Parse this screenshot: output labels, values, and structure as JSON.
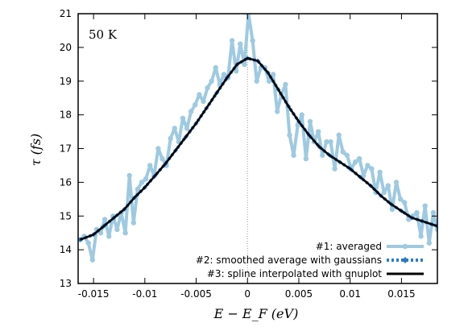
{
  "chart_data": {
    "type": "line",
    "annotation": "50 K",
    "xlabel": "E − E_F (eV)",
    "ylabel": "τ (fs)",
    "xlim": [
      -0.0165,
      0.0185
    ],
    "ylim": [
      13,
      21
    ],
    "xticks": [
      -0.015,
      -0.01,
      -0.005,
      0,
      0.005,
      0.01,
      0.015
    ],
    "xtick_labels": [
      "-0.015",
      "-0.01",
      "-0.005",
      "0",
      "0.005",
      "0.01",
      "0.015"
    ],
    "yticks": [
      13,
      14,
      15,
      16,
      17,
      18,
      19,
      20,
      21
    ],
    "ytick_labels": [
      "13",
      "14",
      "15",
      "16",
      "17",
      "18",
      "19",
      "20",
      "21"
    ],
    "reference_line_x": 0,
    "legend_position": "bottom-right",
    "colors": {
      "averaged": "#9ecae1",
      "smoothed": "#2b7bc4",
      "spline": "#000000",
      "reference": "#999999"
    },
    "series": [
      {
        "name": "#1: averaged",
        "x": [
          -0.0163,
          -0.0159,
          -0.0155,
          -0.0151,
          -0.0147,
          -0.0143,
          -0.0139,
          -0.0135,
          -0.0131,
          -0.0127,
          -0.0123,
          -0.0119,
          -0.0115,
          -0.0111,
          -0.0107,
          -0.0103,
          -0.0099,
          -0.0095,
          -0.0091,
          -0.0087,
          -0.0083,
          -0.0079,
          -0.0075,
          -0.0071,
          -0.0067,
          -0.0063,
          -0.0059,
          -0.0055,
          -0.0051,
          -0.0047,
          -0.0043,
          -0.0039,
          -0.0035,
          -0.0031,
          -0.0027,
          -0.0023,
          -0.0019,
          -0.0015,
          -0.0011,
          -0.0007,
          -0.0003,
          0.0001,
          0.0005,
          0.0009,
          0.0013,
          0.0017,
          0.0021,
          0.0025,
          0.0029,
          0.0033,
          0.0037,
          0.0041,
          0.0045,
          0.0049,
          0.0053,
          0.0057,
          0.0061,
          0.0065,
          0.0069,
          0.0073,
          0.0077,
          0.0081,
          0.0085,
          0.0089,
          0.0093,
          0.0097,
          0.0101,
          0.0105,
          0.0109,
          0.0113,
          0.0117,
          0.0121,
          0.0125,
          0.0129,
          0.0133,
          0.0137,
          0.0141,
          0.0145,
          0.0149,
          0.0153,
          0.0157,
          0.0161,
          0.0165,
          0.0169,
          0.0173,
          0.0177,
          0.0181,
          0.0185
        ],
        "values": [
          14.3,
          14.4,
          14.2,
          13.7,
          14.6,
          14.5,
          14.9,
          14.4,
          15.0,
          14.6,
          15.1,
          14.5,
          16.2,
          14.8,
          15.8,
          16.0,
          16.1,
          16.5,
          16.2,
          17.0,
          16.7,
          16.5,
          17.3,
          17.6,
          17.2,
          17.9,
          17.6,
          18.1,
          18.3,
          18.6,
          18.4,
          18.8,
          19.0,
          19.4,
          18.9,
          19.2,
          19.1,
          20.2,
          19.3,
          20.1,
          19.5,
          21.0,
          20.2,
          19.0,
          19.4,
          19.4,
          19.0,
          19.2,
          18.1,
          18.6,
          18.9,
          17.4,
          16.8,
          17.7,
          18.0,
          16.7,
          17.8,
          17.2,
          17.5,
          16.8,
          17.2,
          17.2,
          16.4,
          17.4,
          16.9,
          16.8,
          16.4,
          16.6,
          16.7,
          16.2,
          16.5,
          16.4,
          15.7,
          16.3,
          15.7,
          15.9,
          15.2,
          16.0,
          15.5,
          15.4,
          14.9,
          15.0,
          15.1,
          14.4,
          15.3,
          14.2,
          15.1,
          14.6
        ]
      },
      {
        "name": "#2: smoothed average with gaussians",
        "x": [
          -0.0163,
          -0.015,
          -0.014,
          -0.013,
          -0.012,
          -0.011,
          -0.01,
          -0.009,
          -0.008,
          -0.007,
          -0.006,
          -0.005,
          -0.004,
          -0.003,
          -0.002,
          -0.001,
          0.0,
          0.001,
          0.002,
          0.003,
          0.004,
          0.005,
          0.006,
          0.007,
          0.008,
          0.009,
          0.01,
          0.011,
          0.012,
          0.013,
          0.014,
          0.015,
          0.016,
          0.017,
          0.018,
          0.0185
        ],
        "values": [
          14.3,
          14.45,
          14.7,
          14.95,
          15.2,
          15.55,
          15.85,
          16.2,
          16.55,
          16.95,
          17.35,
          17.75,
          18.2,
          18.65,
          19.1,
          19.5,
          19.68,
          19.6,
          19.25,
          18.75,
          18.25,
          17.8,
          17.4,
          17.05,
          16.8,
          16.6,
          16.4,
          16.15,
          15.9,
          15.6,
          15.35,
          15.15,
          14.95,
          14.85,
          14.75,
          14.7
        ]
      },
      {
        "name": "#3: spline interpolated with gnuplot",
        "x": [
          -0.0163,
          -0.015,
          -0.014,
          -0.013,
          -0.012,
          -0.011,
          -0.01,
          -0.009,
          -0.008,
          -0.007,
          -0.006,
          -0.005,
          -0.004,
          -0.003,
          -0.002,
          -0.001,
          0.0,
          0.001,
          0.002,
          0.003,
          0.004,
          0.005,
          0.006,
          0.007,
          0.008,
          0.009,
          0.01,
          0.011,
          0.012,
          0.013,
          0.014,
          0.015,
          0.016,
          0.017,
          0.018,
          0.0185
        ],
        "values": [
          14.3,
          14.45,
          14.7,
          14.95,
          15.2,
          15.55,
          15.85,
          16.2,
          16.55,
          16.95,
          17.35,
          17.75,
          18.2,
          18.65,
          19.1,
          19.5,
          19.68,
          19.6,
          19.25,
          18.75,
          18.25,
          17.8,
          17.4,
          17.05,
          16.8,
          16.6,
          16.4,
          16.15,
          15.9,
          15.6,
          15.35,
          15.15,
          14.95,
          14.85,
          14.75,
          14.7
        ]
      }
    ]
  }
}
